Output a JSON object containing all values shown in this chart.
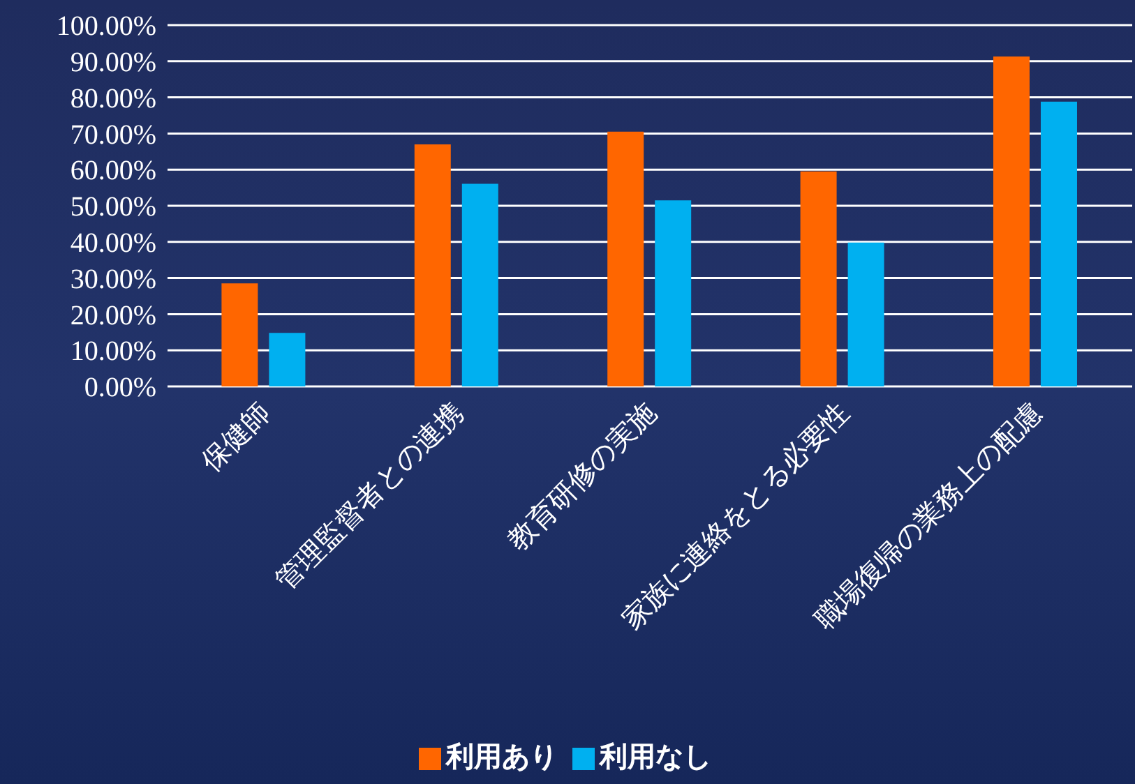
{
  "chart_data": {
    "type": "bar",
    "categories": [
      "保健師",
      "管理監督者との連携",
      "教育研修の実施",
      "家族に連絡をとる必要性",
      "職場復帰の業務上の配慮"
    ],
    "series": [
      {
        "name": "利用あり",
        "color": "#ff6600",
        "values": [
          28.5,
          67.0,
          70.5,
          59.5,
          91.3
        ]
      },
      {
        "name": "利用なし",
        "color": "#00b0f0",
        "values": [
          14.8,
          56.1,
          51.5,
          39.8,
          78.8
        ]
      }
    ],
    "ylim": [
      0,
      100
    ],
    "yticks": [
      {
        "value": 0,
        "label": "0.00%"
      },
      {
        "value": 10,
        "label": "10.00%"
      },
      {
        "value": 20,
        "label": "20.00%"
      },
      {
        "value": 30,
        "label": "30.00%"
      },
      {
        "value": 40,
        "label": "40.00%"
      },
      {
        "value": 50,
        "label": "50.00%"
      },
      {
        "value": 60,
        "label": "60.00%"
      },
      {
        "value": 70,
        "label": "70.00%"
      },
      {
        "value": 80,
        "label": "80.00%"
      },
      {
        "value": 90,
        "label": "90.00%"
      },
      {
        "value": 100,
        "label": "100.00%"
      }
    ],
    "grid": "y",
    "legend": "bottom"
  }
}
